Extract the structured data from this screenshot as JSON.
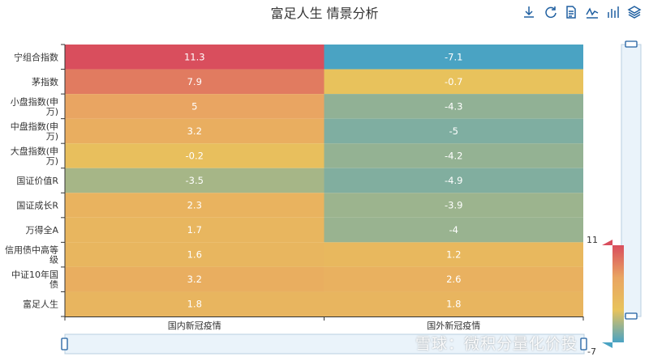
{
  "title": "富足人生 情景分析",
  "toolbar": {
    "icons": [
      "download-icon",
      "refresh-icon",
      "data-view-icon",
      "line-chart-icon",
      "bar-chart-icon",
      "stack-icon"
    ],
    "color": "#1f5fa0"
  },
  "watermark": "雪球：微积分量化价投",
  "chart_data": {
    "type": "heatmap",
    "title": "富足人生 情景分析",
    "x_categories": [
      "国内新冠疫情",
      "国外新冠疫情"
    ],
    "y_categories": [
      [
        "宁组合指数"
      ],
      [
        "茅指数"
      ],
      [
        "小盘指数(申",
        "万)"
      ],
      [
        "中盘指数(申",
        "万)"
      ],
      [
        "大盘指数(申",
        "万)"
      ],
      [
        "国证价值R"
      ],
      [
        "国证成长R"
      ],
      [
        "万得全A"
      ],
      [
        "信用债中高等",
        "级"
      ],
      [
        "中证10年国",
        "债"
      ],
      [
        "富足人生"
      ]
    ],
    "values": [
      [
        11.3,
        -7.1
      ],
      [
        7.9,
        -0.7
      ],
      [
        5,
        -4.3
      ],
      [
        3.2,
        -5
      ],
      [
        -0.2,
        -4.2
      ],
      [
        -3.5,
        -4.9
      ],
      [
        2.3,
        -3.9
      ],
      [
        1.7,
        -4
      ],
      [
        1.6,
        1.2
      ],
      [
        3.2,
        2.6
      ],
      [
        1.8,
        1.8
      ]
    ],
    "visual_map": {
      "min": -7,
      "max": 11,
      "max_label": "11",
      "min_label": "-7",
      "colors": [
        "#4aa3c3",
        "#e8c35c",
        "#e9a562",
        "#d94e5d"
      ]
    }
  }
}
